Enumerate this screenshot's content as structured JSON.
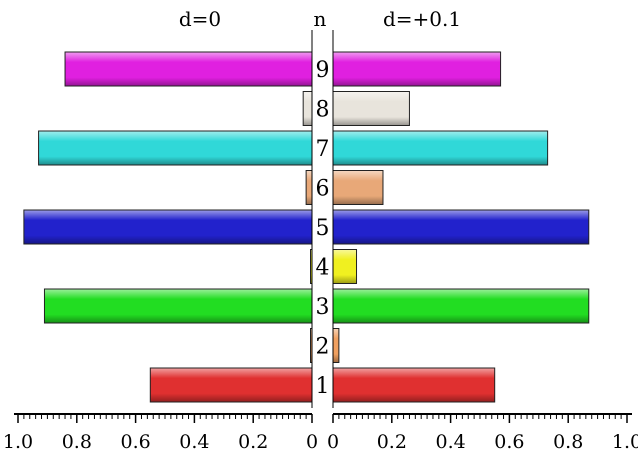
{
  "chart_data": {
    "type": "bar",
    "layout": "back-to-back horizontal",
    "panels": [
      {
        "title": "d=0",
        "direction": "left"
      },
      {
        "title": "d=+0.1",
        "direction": "right"
      }
    ],
    "center_label": "n",
    "categories": [
      "1",
      "2",
      "3",
      "4",
      "5",
      "6",
      "7",
      "8",
      "9"
    ],
    "series": [
      {
        "name": "d=0",
        "values": [
          0.55,
          0.0,
          0.91,
          0.005,
          0.98,
          0.02,
          0.93,
          0.03,
          0.84
        ]
      },
      {
        "name": "d=+0.1",
        "values": [
          0.55,
          0.02,
          0.87,
          0.08,
          0.87,
          0.17,
          0.73,
          0.26,
          0.57
        ]
      }
    ],
    "bar_colors": [
      "#e03030",
      "#f0a060",
      "#22dd22",
      "#f0f020",
      "#2222cc",
      "#e8a878",
      "#30d8d8",
      "#e8e4dc",
      "#e020e0"
    ],
    "xlim": [
      0,
      1.0
    ],
    "left_tick_labels": [
      "1.0",
      "0.8",
      "0.6",
      "0.4",
      "0.2",
      "0"
    ],
    "right_tick_labels": [
      "0",
      "0.2",
      "0.4",
      "0.6",
      "0.8",
      "1.0"
    ],
    "grid": false,
    "legend": "none"
  }
}
